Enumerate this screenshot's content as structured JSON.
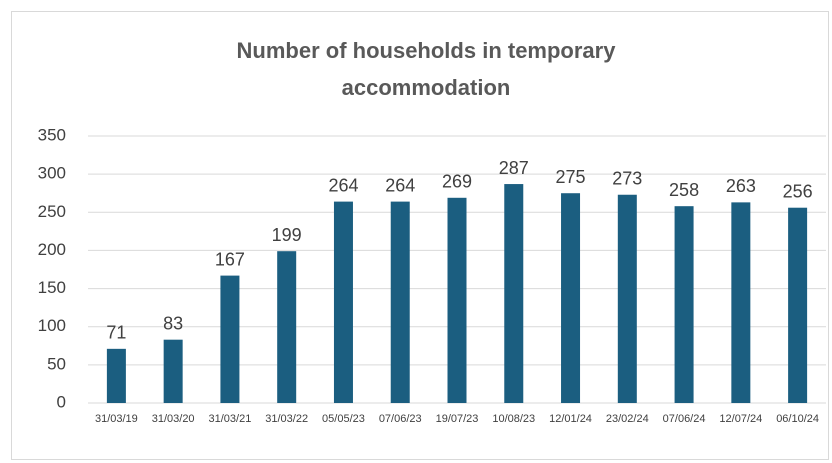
{
  "chart_data": {
    "type": "bar",
    "title": "Number of households in temporary accommodation",
    "categories": [
      "31/03/19",
      "31/03/20",
      "31/03/21",
      "31/03/22",
      "05/05/23",
      "07/06/23",
      "19/07/23",
      "10/08/23",
      "12/01/24",
      "23/02/24",
      "07/06/24",
      "12/07/24",
      "06/10/24"
    ],
    "values": [
      71,
      83,
      167,
      199,
      264,
      264,
      269,
      287,
      275,
      273,
      258,
      263,
      256
    ],
    "color": "#1b5e80",
    "ylim": [
      0,
      350
    ],
    "yticks": [
      0,
      50,
      100,
      150,
      200,
      250,
      300,
      350
    ],
    "grid": true
  }
}
